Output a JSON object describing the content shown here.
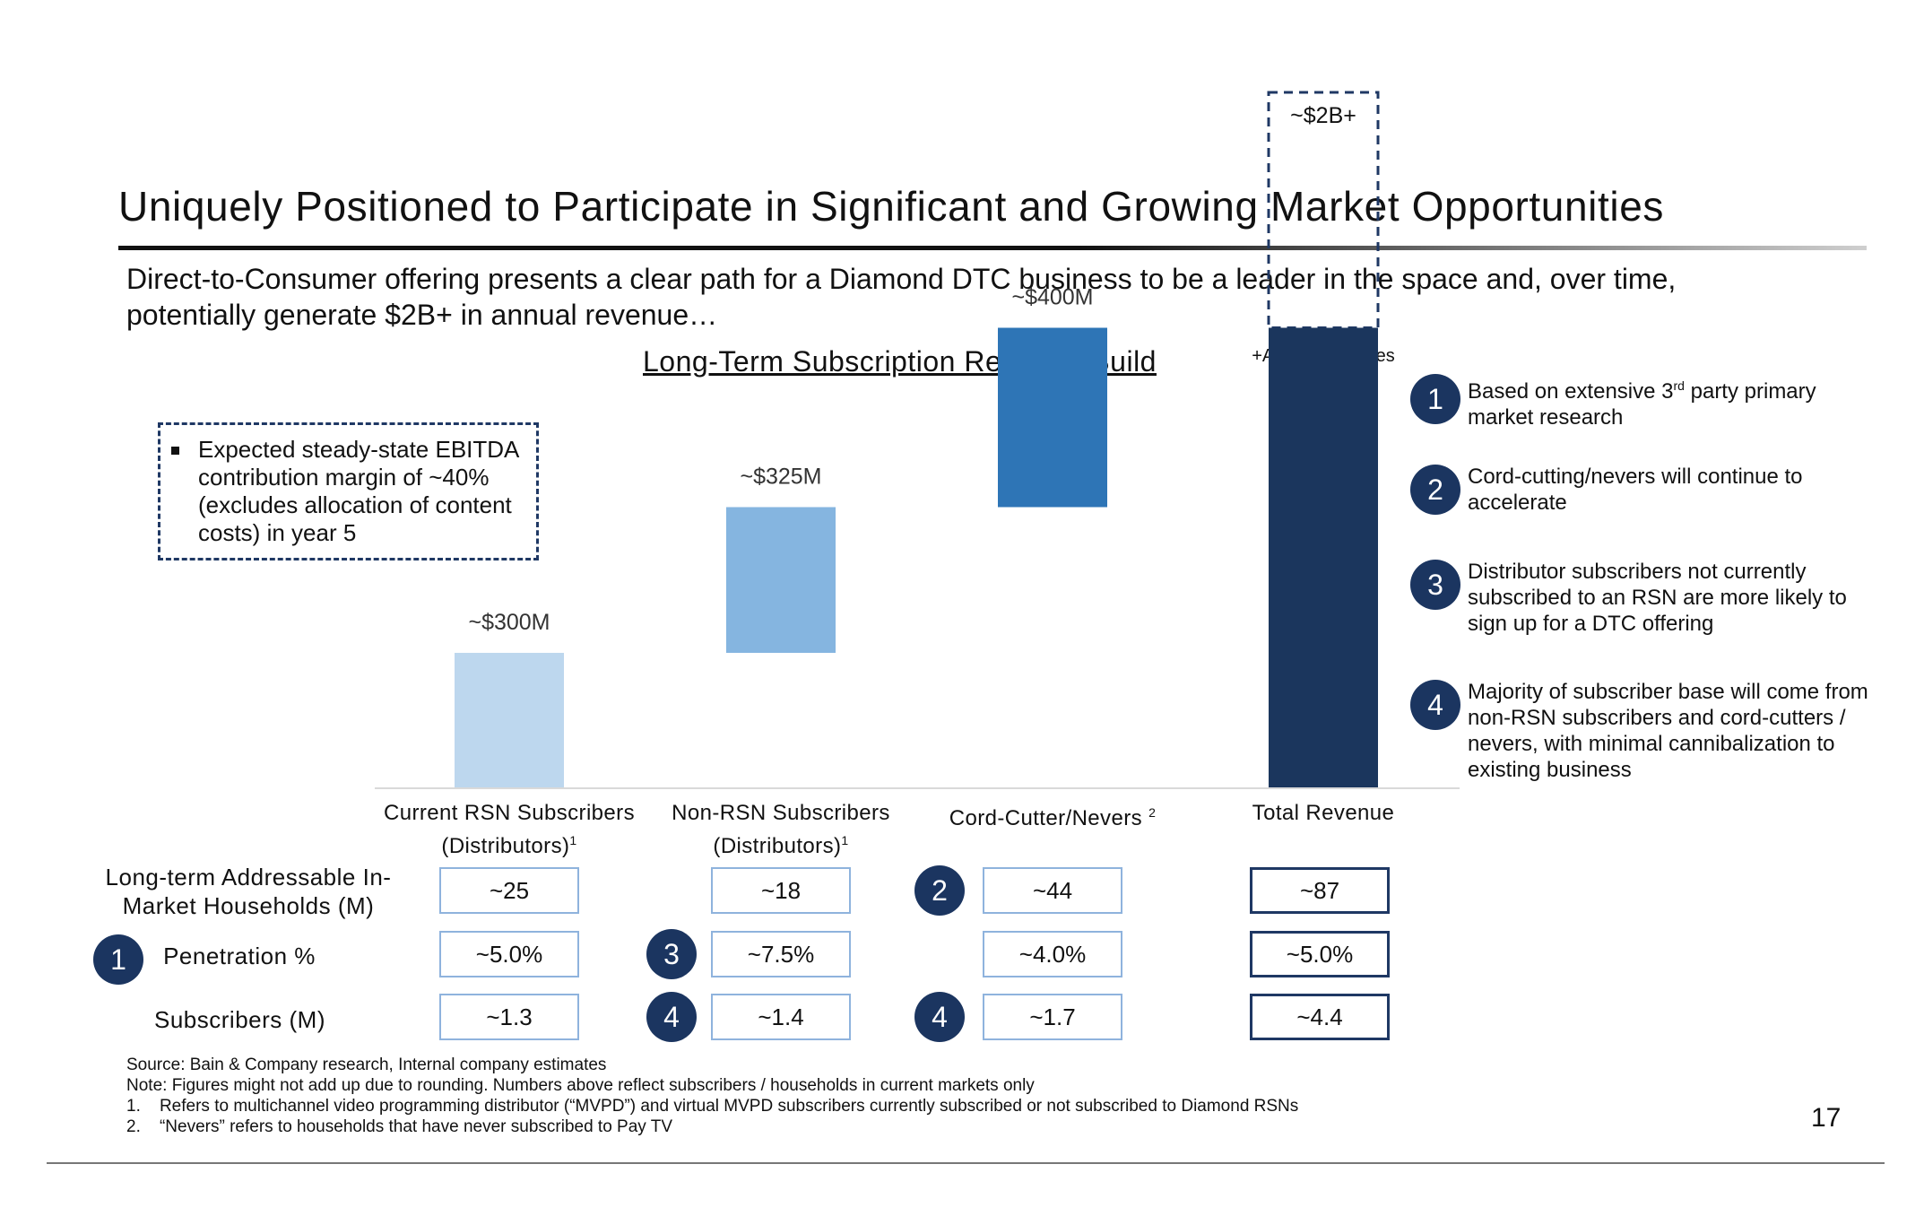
{
  "header": {
    "title": "Uniquely Positioned to Participate in Significant and Growing Market Opportunities",
    "subtitle": "Direct-to-Consumer offering presents a clear path for a Diamond DTC business to be a leader in the space and, over time, potentially generate $2B+ in annual revenue…"
  },
  "callout": {
    "text": "Expected steady-state EBITDA contribution margin of ~40% (excludes allocation of content costs) in year 5"
  },
  "chart_data": {
    "type": "bar",
    "subtype": "waterfall",
    "title": "Long-Term Subscription Revenue Build",
    "categories": [
      {
        "label": "Current RSN Subscribers",
        "label2": "(Distributors)",
        "sup": "1"
      },
      {
        "label": "Non-RSN Subscribers",
        "label2": "(Distributors)",
        "sup": "1"
      },
      {
        "label": "Cord-Cutter/Nevers",
        "label2": "",
        "sup": "2"
      },
      {
        "label": "Total Revenue",
        "label2": "",
        "sup": ""
      }
    ],
    "units": "$M",
    "bars": [
      {
        "base": 0,
        "value": 300,
        "data_label": "~$300M",
        "color": "#bdd7ee"
      },
      {
        "base": 300,
        "value": 325,
        "data_label": "~$325M",
        "color": "#85b5e0"
      },
      {
        "base": 625,
        "value": 400,
        "data_label": "~$400M",
        "color": "#2e75b6"
      },
      {
        "base": 0,
        "value": 1025,
        "data_label": "",
        "color": "#1b365d"
      }
    ],
    "dashed_extension": {
      "from": 1025,
      "to": 1550,
      "label": "~$2B+",
      "header": "+Ad and Features Revenue",
      "color": "#1f3864"
    },
    "ylim": [
      0,
      1600
    ]
  },
  "table": {
    "rows": [
      {
        "label": "Long-term Addressable In-Market Households (M)",
        "badge": "",
        "values": [
          "~25",
          "~18",
          "~44",
          "~87"
        ],
        "badges": [
          "",
          "",
          "2",
          ""
        ]
      },
      {
        "label": "Penetration %",
        "badge": "1",
        "values": [
          "~5.0%",
          "~7.5%",
          "~4.0%",
          "~5.0%"
        ],
        "badges": [
          "",
          "3",
          "",
          ""
        ]
      },
      {
        "label": "Subscribers (M)",
        "badge": "",
        "values": [
          "~1.3",
          "~1.4",
          "~1.7",
          "~4.4"
        ],
        "badges": [
          "",
          "4",
          "4",
          ""
        ]
      }
    ]
  },
  "side_notes": [
    {
      "num": "1",
      "text_pre": "Based on extensive 3",
      "sup": "rd",
      "text_post": " party primary market research"
    },
    {
      "num": "2",
      "text_pre": "Cord-cutting/nevers will continue to accelerate",
      "sup": "",
      "text_post": ""
    },
    {
      "num": "3",
      "text_pre": "Distributor subscribers not currently subscribed to an RSN are more likely to sign up for a DTC offering",
      "sup": "",
      "text_post": ""
    },
    {
      "num": "4",
      "text_pre": "Majority of subscriber base will come from non-RSN subscribers and cord-cutters / nevers, with minimal cannibalization to existing business",
      "sup": "",
      "text_post": ""
    }
  ],
  "footnotes": {
    "source": "Source: Bain & Company research, Internal company estimates",
    "note": "Note: Figures might not add up due to rounding. Numbers above reflect subscribers / households in current markets only",
    "fn1": "1.    Refers to multichannel video programming distributor (“MVPD”) and virtual MVPD subscribers currently subscribed or not subscribed to Diamond RSNs",
    "fn2": "2.    “Nevers” refers to households that have never subscribed to Pay TV"
  },
  "page_number": "17"
}
